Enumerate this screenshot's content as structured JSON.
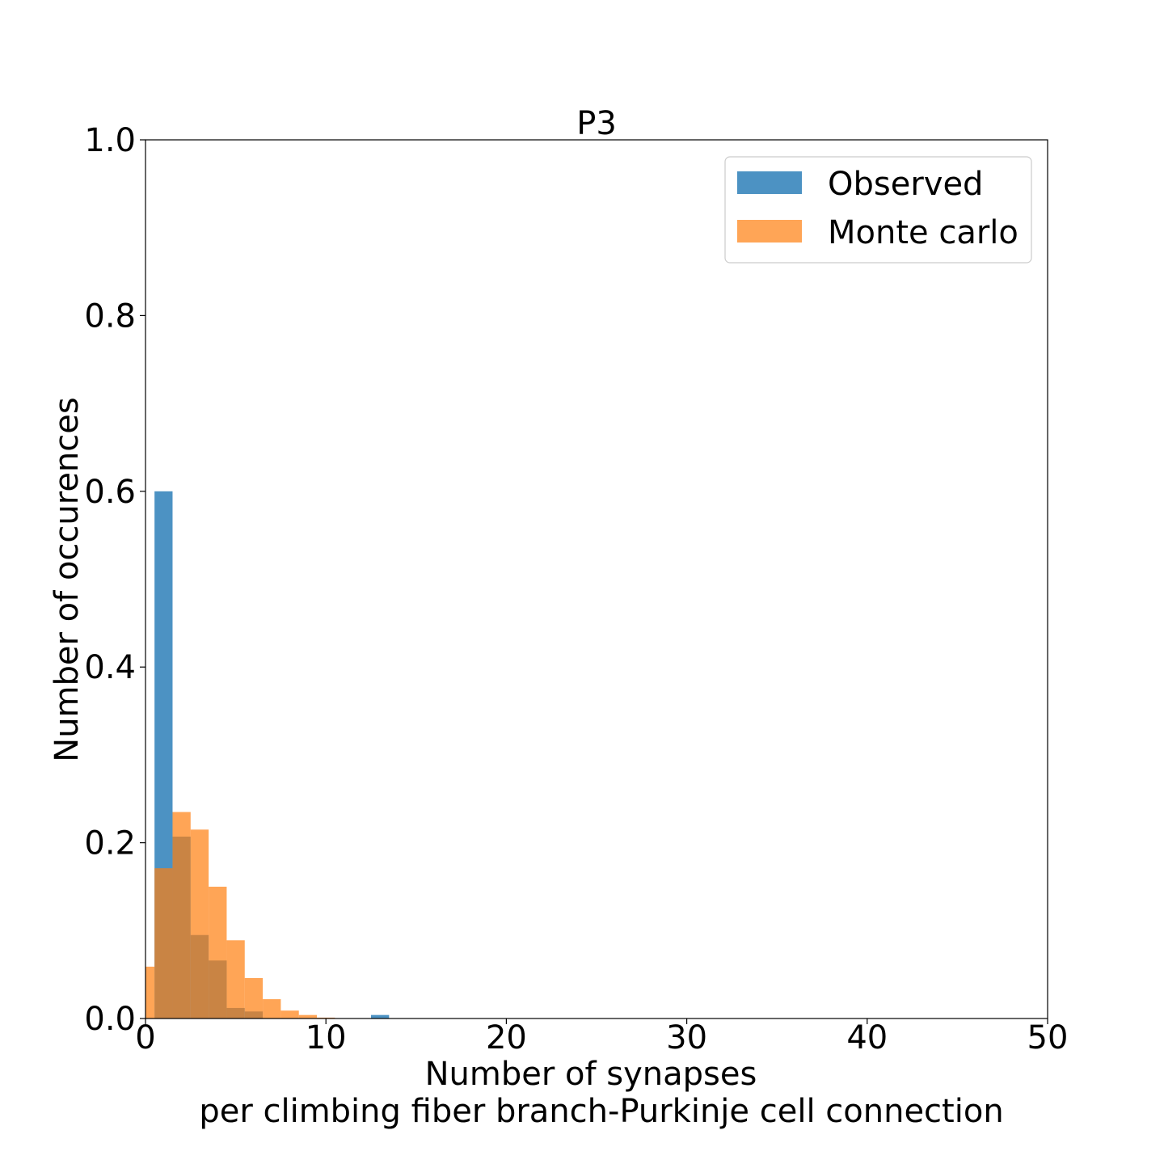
{
  "chart_data": {
    "type": "bar",
    "title": "P3",
    "xlabel_line1": "Number of synapses",
    "xlabel_line2": "per climbing fiber branch-Purkinje cell connection",
    "ylabel": "Number of occurences",
    "xlim": [
      0,
      50
    ],
    "ylim": [
      0,
      1.0
    ],
    "x_ticks": [
      "0",
      "10",
      "20",
      "30",
      "40",
      "50"
    ],
    "y_ticks": [
      "0.0",
      "0.2",
      "0.4",
      "0.6",
      "0.8",
      "1.0"
    ],
    "grid": false,
    "legend_position": "top-right",
    "series": [
      {
        "name": "Observed",
        "color": "#1f77b4",
        "opacity": 0.8,
        "bins": [
          {
            "x0": 0.5,
            "x1": 1.5,
            "value": 0.6
          },
          {
            "x0": 1.5,
            "x1": 2.5,
            "value": 0.207
          },
          {
            "x0": 2.5,
            "x1": 3.5,
            "value": 0.095
          },
          {
            "x0": 3.5,
            "x1": 4.5,
            "value": 0.066
          },
          {
            "x0": 4.5,
            "x1": 5.5,
            "value": 0.012
          },
          {
            "x0": 5.5,
            "x1": 6.5,
            "value": 0.008
          },
          {
            "x0": 12.5,
            "x1": 13.5,
            "value": 0.004
          }
        ]
      },
      {
        "name": "Monte carlo",
        "color": "#ff7f0e",
        "opacity": 0.7,
        "bins": [
          {
            "x0": -0.5,
            "x1": 0.5,
            "value": 0.059
          },
          {
            "x0": 0.5,
            "x1": 1.5,
            "value": 0.171
          },
          {
            "x0": 1.5,
            "x1": 2.5,
            "value": 0.235
          },
          {
            "x0": 2.5,
            "x1": 3.5,
            "value": 0.215
          },
          {
            "x0": 3.5,
            "x1": 4.5,
            "value": 0.15
          },
          {
            "x0": 4.5,
            "x1": 5.5,
            "value": 0.089
          },
          {
            "x0": 5.5,
            "x1": 6.5,
            "value": 0.046
          },
          {
            "x0": 6.5,
            "x1": 7.5,
            "value": 0.022
          },
          {
            "x0": 7.5,
            "x1": 8.5,
            "value": 0.009
          },
          {
            "x0": 8.5,
            "x1": 9.5,
            "value": 0.004
          },
          {
            "x0": 9.5,
            "x1": 10.5,
            "value": 0.001
          }
        ]
      }
    ]
  }
}
